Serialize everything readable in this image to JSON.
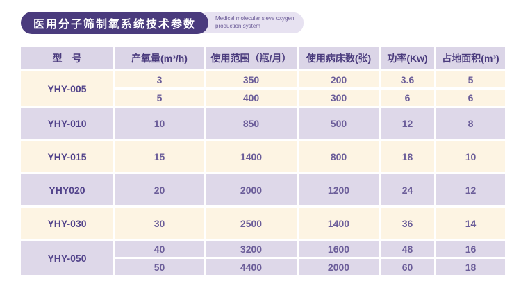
{
  "colors": {
    "accent_dark_purple": "#4a3b7d",
    "row_lavender": "#ded8e9",
    "row_cream": "#fdf4e3",
    "subtitle_bubble": "#e7e2f1",
    "value_text": "#6b5d99"
  },
  "header": {
    "title": "医用分子筛制氧系统技术参数",
    "subtitle_line1": "Medical molecular sieve oxygen",
    "subtitle_line2": "production system"
  },
  "table": {
    "columns": [
      "型　号",
      "产氧量(m³/h)",
      "使用范围（瓶/月）",
      "使用病床数(张)",
      "功率(Kw)",
      "占地面积(m³)"
    ],
    "groups": [
      {
        "model": "YHY-005",
        "rows": [
          [
            "3",
            "350",
            "200",
            "3.6",
            "5"
          ],
          [
            "5",
            "400",
            "300",
            "6",
            "6"
          ]
        ]
      },
      {
        "model": "YHY-010",
        "rows": [
          [
            "10",
            "850",
            "500",
            "12",
            "8"
          ]
        ]
      },
      {
        "model": "YHY-015",
        "rows": [
          [
            "15",
            "1400",
            "800",
            "18",
            "10"
          ]
        ]
      },
      {
        "model": "YHY020",
        "rows": [
          [
            "20",
            "2000",
            "1200",
            "24",
            "12"
          ]
        ]
      },
      {
        "model": "YHY-030",
        "rows": [
          [
            "30",
            "2500",
            "1400",
            "36",
            "14"
          ]
        ]
      },
      {
        "model": "YHY-050",
        "rows": [
          [
            "40",
            "3200",
            "1600",
            "48",
            "16"
          ],
          [
            "50",
            "4400",
            "2000",
            "60",
            "18"
          ]
        ]
      }
    ]
  }
}
